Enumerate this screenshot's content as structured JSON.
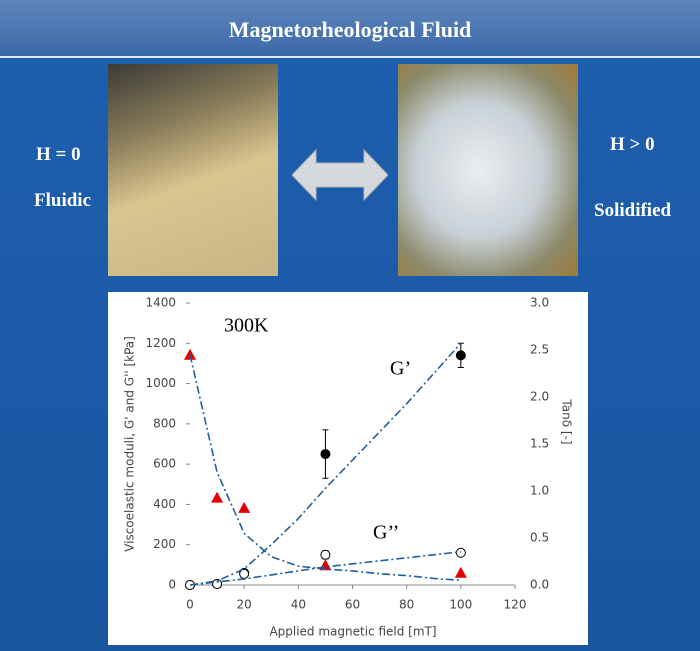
{
  "header": {
    "title": "Magnetorheological Fluid"
  },
  "labels": {
    "left_state": "H = 0",
    "left_phase": "Fluidic",
    "right_state": "H > 0",
    "right_phase": "Solidified"
  },
  "chart_data": {
    "type": "scatter",
    "annotations": [
      "300K",
      "G’",
      "G’’"
    ],
    "x_label": "Applied magnetic field [mT]",
    "y_label": "Viscoelastic moduli, G' and G'' [kPa]",
    "y2_label": "Tanδ [-]",
    "xlim": [
      0,
      120
    ],
    "xticks": [
      0,
      20,
      40,
      60,
      80,
      100,
      120
    ],
    "ylim": [
      0,
      1400
    ],
    "yticks": [
      0,
      200,
      400,
      600,
      800,
      1000,
      1200,
      1400
    ],
    "y2lim": [
      0,
      3
    ],
    "y2ticks": [
      {
        "value": 0,
        "label": "0.0"
      },
      0.5,
      {
        "value": 1,
        "label": "1.0"
      },
      1.5,
      {
        "value": 2,
        "label": "2.0"
      },
      2.5,
      {
        "value": 3,
        "label": "3.0"
      }
    ],
    "series": [
      {
        "marker": "circle-filled",
        "color": "#000000",
        "x": [
          0,
          10,
          20,
          50,
          100
        ],
        "values": [
          0,
          5,
          60,
          650,
          1140
        ],
        "errors": [
          null,
          null,
          null,
          120,
          60
        ]
      },
      {
        "marker": "circle-open",
        "color": "#000000",
        "x": [
          0,
          10,
          20,
          50,
          100
        ],
        "values": [
          0,
          5,
          55,
          150,
          160
        ],
        "errors": [
          null,
          null,
          null,
          20,
          15
        ]
      },
      {
        "marker": "triangle",
        "color": "#e00000",
        "axis": "y2",
        "x": [
          0,
          10,
          20,
          50,
          100
        ],
        "values": [
          2.45,
          0.93,
          0.82,
          0.21,
          0.13
        ]
      },
      {
        "marker": "dash-dot",
        "color": "#1f5fa0",
        "x": [
          0,
          10,
          20,
          30,
          40,
          50,
          60,
          70,
          80,
          90,
          100
        ],
        "values": [
          0,
          20,
          80,
          200,
          330,
          480,
          620,
          760,
          900,
          1050,
          1200
        ]
      },
      {
        "marker": "dash-dot",
        "color": "#1f5fa0",
        "x": [
          0,
          10,
          20,
          30,
          40,
          50,
          60,
          70,
          80,
          90,
          100
        ],
        "values": [
          0,
          15,
          30,
          50,
          70,
          90,
          105,
          120,
          135,
          150,
          165
        ]
      },
      {
        "marker": "dash-dot",
        "color": "#1f5fa0",
        "axis": "y2",
        "x": [
          0,
          10,
          20,
          30,
          40,
          50,
          60,
          70,
          80,
          90,
          100
        ],
        "values": [
          2.45,
          1.2,
          0.55,
          0.3,
          0.2,
          0.17,
          0.15,
          0.12,
          0.1,
          0.07,
          0.05
        ]
      }
    ]
  }
}
